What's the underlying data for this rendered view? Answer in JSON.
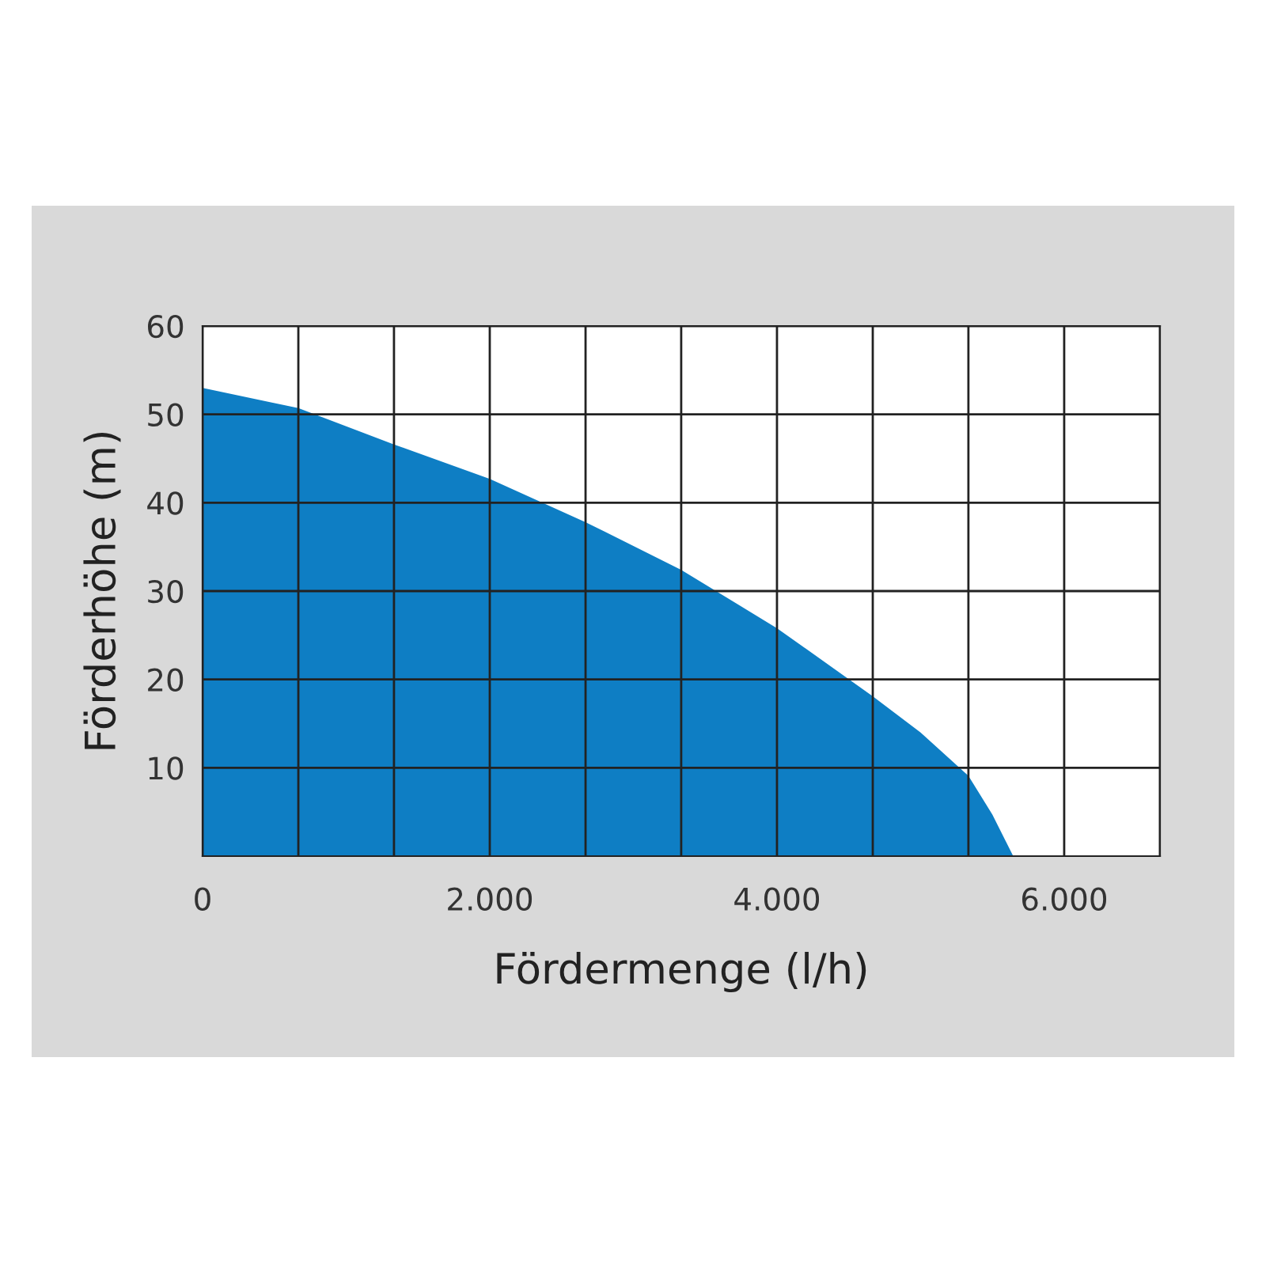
{
  "chart_data": {
    "type": "area",
    "xlabel": "Fördermenge (l/h)",
    "ylabel": "Förderhöhe (m)",
    "x": [
      0,
      667,
      1333,
      2000,
      2667,
      3333,
      4000,
      4667,
      5000,
      5333,
      5500,
      5645
    ],
    "series": [
      {
        "color": "#0e7ec4",
        "values": [
          53,
          50.7,
          46.6,
          42.7,
          37.8,
          32.4,
          25.8,
          18.1,
          14,
          9.1,
          4.7,
          0
        ]
      }
    ],
    "xlim": [
      0,
      6667
    ],
    "xticks": [
      0,
      {
        "value": 667,
        "label": null
      },
      {
        "value": 1333,
        "label": null
      },
      {
        "value": 2000,
        "label": "2.000"
      },
      {
        "value": 2667,
        "label": null
      },
      {
        "value": 3333,
        "label": null
      },
      {
        "value": 4000,
        "label": "4.000"
      },
      {
        "value": 4667,
        "label": null
      },
      {
        "value": 5333,
        "label": null
      },
      {
        "value": 6000,
        "label": "6.000"
      },
      {
        "value": 6667,
        "label": null
      }
    ],
    "ylim": [
      0,
      60
    ],
    "yticks": [
      10,
      20,
      30,
      40,
      50,
      60
    ],
    "grid": true,
    "legend": false
  }
}
